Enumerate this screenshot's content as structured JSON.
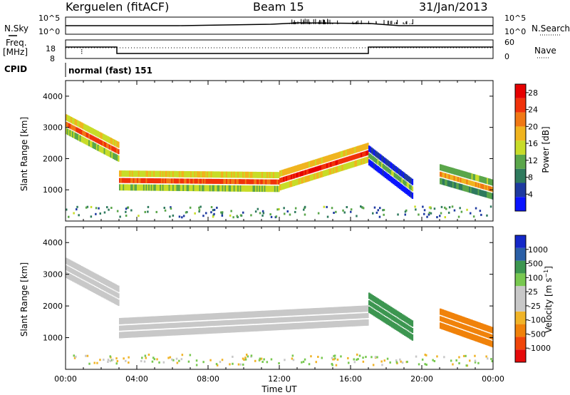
{
  "header": {
    "station": "Kerguelen (fitACF)",
    "beam": "Beam 15",
    "date": "31/Jan/2013"
  },
  "status_panels": {
    "nsky_label": "N.Sky",
    "nsky_ticks": [
      "10^5",
      "10^0"
    ],
    "nsearch_label": "N.Search",
    "nsearch_ticks": [
      "10^5",
      "10^0"
    ],
    "freq_label": "Freq.",
    "freq_unit": "[MHz]",
    "freq_ticks": [
      "18",
      "8"
    ],
    "nave_label": "Nave",
    "nave_ticks": [
      "60",
      "0"
    ],
    "cpid_label": "CPID",
    "cpid_value": "normal (fast) 151"
  },
  "colors": {
    "power_scale": [
      "#0a14ff",
      "#1e3aa0",
      "#2f7a5e",
      "#5aa64a",
      "#c8dc28",
      "#f0b41e",
      "#f07814",
      "#f0320a",
      "#e60000"
    ],
    "velocity_scale": [
      "#1428c8",
      "#2a5fa6",
      "#3c9650",
      "#78c850",
      "#c8c8c8",
      "#c8c8c8",
      "#f0b428",
      "#f0820a",
      "#f0460a",
      "#e60a0a"
    ]
  },
  "chart_data": [
    {
      "type": "heatmap",
      "quantity": "Power",
      "x": [
        "00:00",
        "04:00",
        "08:00",
        "12:00",
        "16:00",
        "20:00",
        "00:00"
      ],
      "xlabel": "Time UT",
      "ylabel": "Slant Range [km]",
      "ylim": [
        0,
        4500
      ],
      "y_ticks": [
        "1000",
        "2000",
        "3000",
        "4000"
      ],
      "colorbar": {
        "label": "Power [dB]",
        "ticks": [
          "4",
          "8",
          "12",
          "16",
          "20",
          "24",
          "28"
        ],
        "range": [
          0,
          30
        ]
      },
      "features": [
        {
          "t_start_h": 0.0,
          "t_end_h": 3.0,
          "range_start_km": 3100,
          "range_end_km": 2200,
          "level_db": 24
        },
        {
          "t_start_h": 3.0,
          "t_end_h": 12.0,
          "range_start_km": 1300,
          "range_end_km": 1250,
          "level_db": 24
        },
        {
          "t_start_h": 12.0,
          "t_end_h": 17.0,
          "range_start_km": 1300,
          "range_end_km": 2200,
          "level_db": 26
        },
        {
          "t_start_h": 17.0,
          "t_end_h": 19.5,
          "range_start_km": 2100,
          "range_end_km": 1000,
          "level_db": 12
        },
        {
          "t_start_h": 21.0,
          "t_end_h": 24.0,
          "range_start_km": 1500,
          "range_end_km": 1000,
          "level_db": 20
        }
      ]
    },
    {
      "type": "heatmap",
      "quantity": "Velocity",
      "x": [
        "00:00",
        "04:00",
        "08:00",
        "12:00",
        "16:00",
        "20:00",
        "00:00"
      ],
      "xlabel": "Time UT",
      "ylabel": "Slant Range [km]",
      "ylim": [
        0,
        4500
      ],
      "y_ticks": [
        "1000",
        "2000",
        "3000",
        "4000"
      ],
      "colorbar": {
        "label": "Velocity [m s^-1]",
        "ticks": [
          "1000",
          "500",
          "100",
          "25",
          "-25",
          "-100",
          "-500",
          "-1000"
        ]
      },
      "features": [
        {
          "t_start_h": 0.0,
          "t_end_h": 3.0,
          "range_start_km": 3200,
          "range_end_km": 2300,
          "velocity_ms": 0
        },
        {
          "t_start_h": 3.0,
          "t_end_h": 17.0,
          "range_start_km": 1300,
          "range_end_km": 1700,
          "velocity_ms": 0
        },
        {
          "t_start_h": 17.0,
          "t_end_h": 19.5,
          "range_start_km": 2100,
          "range_end_km": 1200,
          "velocity_ms": 200
        },
        {
          "t_start_h": 21.0,
          "t_end_h": 24.0,
          "range_start_km": 1600,
          "range_end_km": 1000,
          "velocity_ms": -400
        }
      ]
    }
  ]
}
